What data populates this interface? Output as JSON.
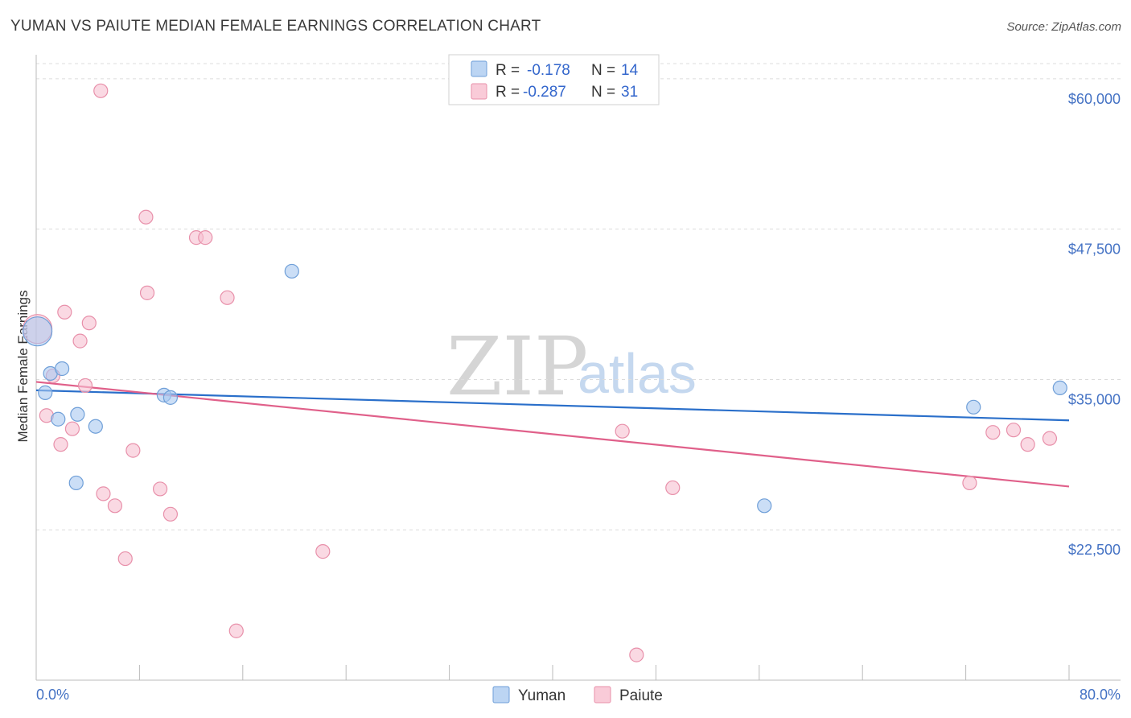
{
  "chart_data": {
    "type": "scatter",
    "title": "YUMAN VS PAIUTE MEDIAN FEMALE EARNINGS CORRELATION CHART",
    "source": "Source: ZipAtlas.com",
    "xlabel": "",
    "ylabel": "Median Female Earnings",
    "xlim": [
      0,
      80
    ],
    "ylim": [
      10000,
      62000
    ],
    "x_tick_labels": {
      "min": "0.0%",
      "max": "80.0%"
    },
    "y_ticks": [
      {
        "value": 22500,
        "label": "$22,500"
      },
      {
        "value": 35000,
        "label": "$35,000"
      },
      {
        "value": 47500,
        "label": "$47,500"
      },
      {
        "value": 60000,
        "label": "$60,000"
      }
    ],
    "grid": true,
    "watermark": {
      "zip": "ZIP",
      "atlas": "atlas"
    },
    "legend_stats": [
      {
        "r_label": "R =",
        "r_value": "-0.178",
        "n_label": "N =",
        "n_value": "14"
      },
      {
        "r_label": "R =",
        "r_value": "-0.287",
        "n_label": "N =",
        "n_value": "31"
      }
    ],
    "series": [
      {
        "name": "Yuman",
        "color": "#a8c8f0",
        "stroke": "#6f9fd8",
        "line_color": "#2a6fca",
        "trend": {
          "x0": 0,
          "y0": 34100,
          "x1": 80,
          "y1": 31600
        },
        "points": [
          {
            "x": 0.1,
            "y": 39000,
            "big": true
          },
          {
            "x": 0.7,
            "y": 33900
          },
          {
            "x": 1.1,
            "y": 35500
          },
          {
            "x": 1.7,
            "y": 31700
          },
          {
            "x": 2.0,
            "y": 35900
          },
          {
            "x": 3.2,
            "y": 32100
          },
          {
            "x": 3.1,
            "y": 26400
          },
          {
            "x": 4.6,
            "y": 31100
          },
          {
            "x": 9.9,
            "y": 33700
          },
          {
            "x": 10.4,
            "y": 33500
          },
          {
            "x": 19.8,
            "y": 44000
          },
          {
            "x": 56.4,
            "y": 24500
          },
          {
            "x": 72.6,
            "y": 32700
          },
          {
            "x": 79.3,
            "y": 34300
          }
        ]
      },
      {
        "name": "Paiute",
        "color": "#f7c0d0",
        "stroke": "#e890aa",
        "line_color": "#e0608a",
        "trend": {
          "x0": 0,
          "y0": 34800,
          "x1": 80,
          "y1": 26100
        },
        "points": [
          {
            "x": 0.1,
            "y": 39200,
            "big": true
          },
          {
            "x": 5.0,
            "y": 59000
          },
          {
            "x": 8.5,
            "y": 48500
          },
          {
            "x": 12.4,
            "y": 46800
          },
          {
            "x": 13.1,
            "y": 46800
          },
          {
            "x": 8.6,
            "y": 42200
          },
          {
            "x": 14.8,
            "y": 41800
          },
          {
            "x": 2.2,
            "y": 40600
          },
          {
            "x": 4.1,
            "y": 39700
          },
          {
            "x": 3.4,
            "y": 38200
          },
          {
            "x": 1.3,
            "y": 35300
          },
          {
            "x": 3.8,
            "y": 34500
          },
          {
            "x": 0.8,
            "y": 32000
          },
          {
            "x": 2.8,
            "y": 30900
          },
          {
            "x": 1.9,
            "y": 29600
          },
          {
            "x": 7.5,
            "y": 29100
          },
          {
            "x": 5.2,
            "y": 25500
          },
          {
            "x": 6.1,
            "y": 24500
          },
          {
            "x": 9.6,
            "y": 25900
          },
          {
            "x": 10.4,
            "y": 23800
          },
          {
            "x": 6.9,
            "y": 20100
          },
          {
            "x": 22.2,
            "y": 20700
          },
          {
            "x": 15.5,
            "y": 14100
          },
          {
            "x": 45.4,
            "y": 30700
          },
          {
            "x": 49.3,
            "y": 26000
          },
          {
            "x": 46.5,
            "y": 12100
          },
          {
            "x": 72.3,
            "y": 26400
          },
          {
            "x": 74.1,
            "y": 30600
          },
          {
            "x": 75.7,
            "y": 30800
          },
          {
            "x": 76.8,
            "y": 29600
          },
          {
            "x": 78.5,
            "y": 30100
          }
        ]
      }
    ]
  }
}
